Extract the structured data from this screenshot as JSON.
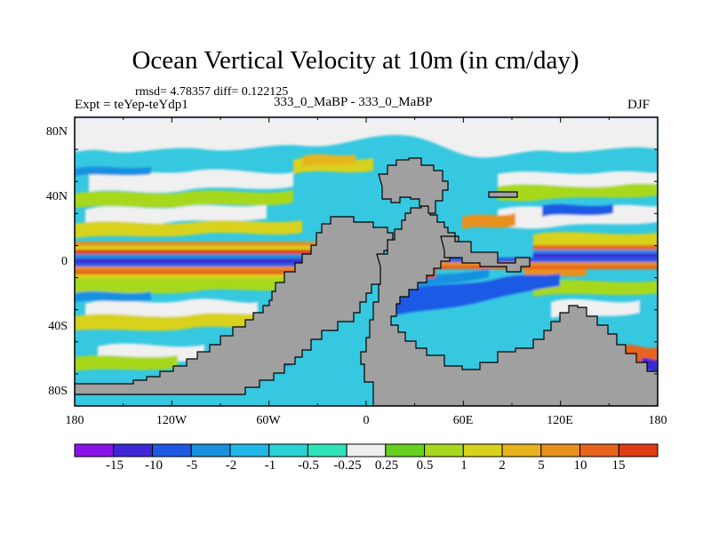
{
  "title": "Ocean Vertical Velocity at 10m (in cm/day)",
  "stats": {
    "rmsd_text": "rmsd= 4.78357 diff= 0.122125"
  },
  "experiment": "Expt = teYep-teYdp1",
  "runs": "333_0_MaBP - 333_0_MaBP",
  "season": "DJF",
  "map": {
    "lon_ticks": [
      "180",
      "120W",
      "60W",
      "0",
      "60E",
      "120E",
      "180"
    ],
    "lat_ticks": [
      "80N",
      "40N",
      "0",
      "40S",
      "80S"
    ],
    "land_color": "#a0a0a0",
    "ocean_background": "#36c8e0"
  },
  "colorbar": {
    "colors": [
      "#8a14e8",
      "#3c28d6",
      "#1e5ae6",
      "#1890e0",
      "#20b8e8",
      "#28d2d2",
      "#2ee4b8",
      "#f0f0f0",
      "#64d21e",
      "#a8d81e",
      "#d8d21e",
      "#e8b41e",
      "#e8901e",
      "#e8641e",
      "#e03c14"
    ],
    "labels": [
      "-15",
      "-10",
      "-5",
      "-2",
      "-1",
      "-0.5",
      "-0.25",
      "0.25",
      "0.5",
      "1",
      "2",
      "5",
      "10",
      "15"
    ]
  }
}
